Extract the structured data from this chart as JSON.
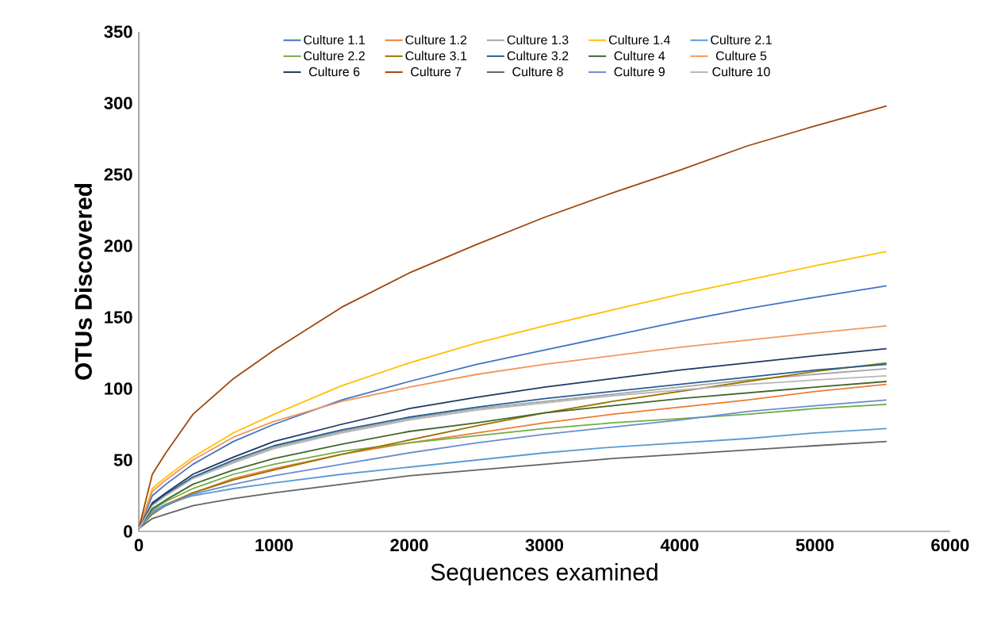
{
  "chart_data": {
    "type": "line",
    "xlabel": "Sequences examined",
    "ylabel": "OTUs Discovered",
    "x": [
      0,
      100,
      200,
      400,
      700,
      1000,
      1500,
      2000,
      2500,
      3000,
      3500,
      4000,
      4500,
      5000,
      5530
    ],
    "xlim": [
      0,
      6000
    ],
    "xticks": [
      0,
      1000,
      2000,
      3000,
      4000,
      5000,
      6000
    ],
    "ylim": [
      0,
      350
    ],
    "yticks": [
      0,
      50,
      100,
      150,
      200,
      250,
      300,
      350
    ],
    "grid": false,
    "legend": "top",
    "marker": "none",
    "line_style": "solid",
    "series": [
      {
        "name": "Culture 1.1",
        "color": "#4472c4",
        "values": [
          2,
          25,
          33,
          47,
          63,
          75,
          92,
          105,
          117,
          127,
          137,
          147,
          156,
          164,
          172
        ]
      },
      {
        "name": "Culture 1.2",
        "color": "#ed7d31",
        "values": [
          2,
          13,
          19,
          27,
          37,
          44,
          54,
          62,
          69,
          76,
          82,
          87,
          92,
          98,
          103
        ]
      },
      {
        "name": "Culture 1.3",
        "color": "#a5a5a5",
        "values": [
          2,
          19,
          26,
          38,
          49,
          59,
          70,
          79,
          86,
          91,
          96,
          101,
          106,
          110,
          114
        ]
      },
      {
        "name": "Culture 1.4",
        "color": "#ffc000",
        "values": [
          2,
          30,
          38,
          52,
          69,
          82,
          102,
          118,
          132,
          144,
          155,
          166,
          176,
          186,
          196
        ]
      },
      {
        "name": "Culture 2.1",
        "color": "#5b9bd5",
        "values": [
          2,
          14,
          19,
          25,
          30,
          34,
          40,
          45,
          50,
          55,
          59,
          62,
          65,
          69,
          72
        ]
      },
      {
        "name": "Culture 2.2",
        "color": "#70ad47",
        "values": [
          2,
          15,
          21,
          30,
          40,
          47,
          56,
          62,
          67,
          72,
          76,
          79,
          82,
          86,
          89
        ]
      },
      {
        "name": "Culture 3.1",
        "color": "#997300",
        "values": [
          2,
          12,
          18,
          27,
          36,
          43,
          54,
          64,
          74,
          83,
          91,
          98,
          105,
          112,
          118
        ]
      },
      {
        "name": "Culture 3.2",
        "color": "#255e91",
        "values": [
          2,
          19,
          26,
          38,
          50,
          60,
          71,
          80,
          87,
          93,
          98,
          103,
          108,
          113,
          117
        ]
      },
      {
        "name": "Culture 4",
        "color": "#43682b",
        "values": [
          2,
          16,
          22,
          33,
          43,
          51,
          61,
          70,
          76,
          83,
          88,
          93,
          97,
          101,
          105
        ]
      },
      {
        "name": "Culture 5",
        "color": "#f1975a",
        "values": [
          2,
          28,
          36,
          50,
          66,
          77,
          91,
          101,
          110,
          117,
          123,
          129,
          134,
          139,
          144
        ]
      },
      {
        "name": "Culture 6",
        "color": "#203864",
        "values": [
          2,
          20,
          27,
          40,
          52,
          63,
          75,
          86,
          94,
          101,
          107,
          113,
          118,
          123,
          128
        ]
      },
      {
        "name": "Culture 7",
        "color": "#9e480e",
        "values": [
          2,
          40,
          55,
          82,
          107,
          127,
          157,
          181,
          201,
          220,
          237,
          253,
          270,
          284,
          298
        ]
      },
      {
        "name": "Culture 8",
        "color": "#636363",
        "values": [
          2,
          9,
          12,
          18,
          23,
          27,
          33,
          39,
          43,
          47,
          51,
          54,
          57,
          60,
          63
        ]
      },
      {
        "name": "Culture 9",
        "color": "#698ed0",
        "values": [
          2,
          13,
          18,
          26,
          33,
          39,
          47,
          55,
          62,
          68,
          73,
          78,
          84,
          88,
          92
        ]
      },
      {
        "name": "Culture 10",
        "color": "#b7b7b7",
        "values": [
          2,
          18,
          25,
          37,
          48,
          58,
          69,
          78,
          85,
          90,
          95,
          99,
          103,
          106,
          109
        ]
      }
    ]
  }
}
